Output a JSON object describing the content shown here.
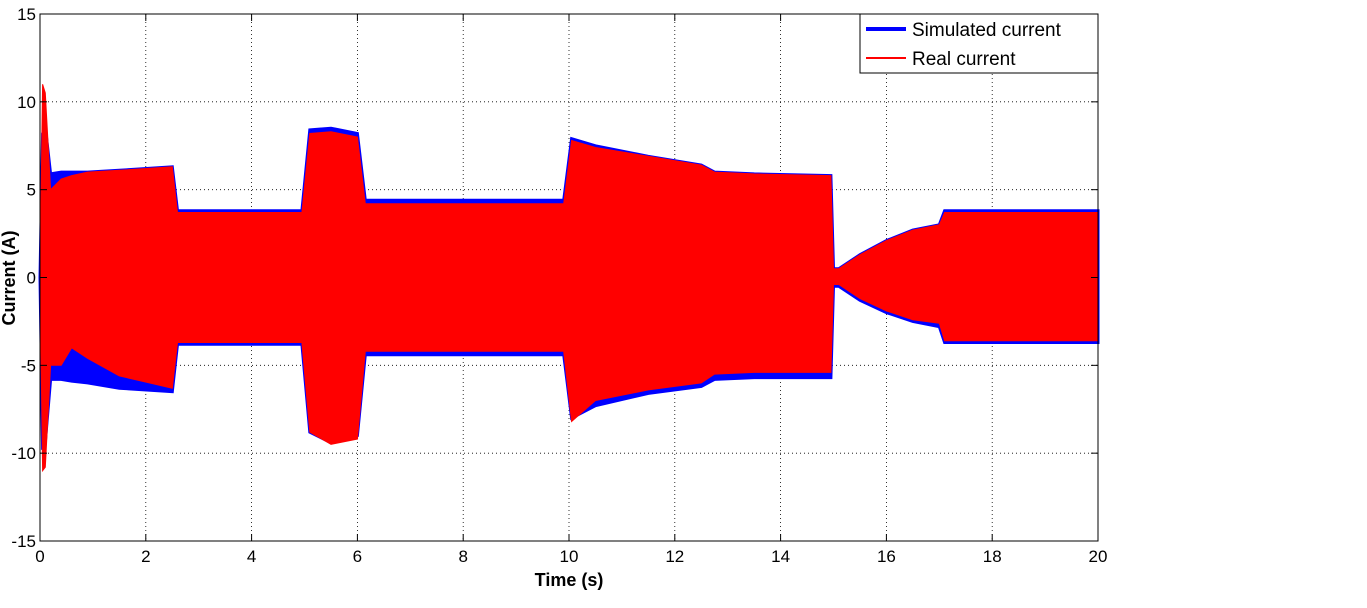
{
  "chart_data": {
    "type": "line",
    "title": "",
    "xlabel": "Time (s)",
    "ylabel": "Current (A)",
    "xlim": [
      0,
      20
    ],
    "ylim": [
      -15,
      15
    ],
    "xticks": [
      0,
      2,
      4,
      6,
      8,
      10,
      12,
      14,
      16,
      18,
      20
    ],
    "yticks": [
      -15,
      -10,
      -5,
      0,
      5,
      10,
      15
    ],
    "grid": true,
    "legend_position": "top-right",
    "colors": {
      "simulated": "#0000ff",
      "real": "#ff0000"
    },
    "series": [
      {
        "name": "Simulated current",
        "kind": "oscillation_envelope",
        "t": [
          0,
          0.05,
          0.1,
          0.2,
          0.4,
          0.6,
          0.9,
          1.5,
          2.5,
          2.6,
          4.95,
          5.1,
          5.5,
          6.0,
          6.15,
          9.9,
          10.05,
          10.5,
          11.5,
          12.5,
          12.75,
          13.5,
          14.95,
          15.0,
          15.1,
          15.5,
          16.0,
          16.5,
          17.0,
          17.1,
          20.0
        ],
        "upper": [
          0,
          8.2,
          8.6,
          5.9,
          6.0,
          6.0,
          6.0,
          6.1,
          6.3,
          3.8,
          3.8,
          8.4,
          8.5,
          8.2,
          4.4,
          4.4,
          7.9,
          7.5,
          6.9,
          6.4,
          6.0,
          5.9,
          5.8,
          0.5,
          0.5,
          1.3,
          2.1,
          2.7,
          3.0,
          3.8,
          3.8
        ],
        "lower": [
          0,
          -9.8,
          -9.4,
          -5.8,
          -5.8,
          -5.9,
          -6.0,
          -6.3,
          -6.5,
          -3.8,
          -3.8,
          -8.8,
          -9.4,
          -9.0,
          -4.4,
          -4.4,
          -8.0,
          -7.3,
          -6.6,
          -6.2,
          -5.8,
          -5.7,
          -5.7,
          -0.5,
          -0.5,
          -1.3,
          -2.0,
          -2.5,
          -2.8,
          -3.7,
          -3.7
        ]
      },
      {
        "name": "Real current",
        "kind": "oscillation_envelope",
        "t": [
          0,
          0.05,
          0.1,
          0.2,
          0.4,
          0.6,
          0.9,
          1.5,
          2.5,
          2.6,
          4.95,
          5.1,
          5.5,
          6.0,
          6.15,
          9.9,
          10.05,
          10.5,
          11.5,
          12.5,
          12.75,
          13.5,
          14.95,
          15.0,
          15.1,
          15.5,
          16.0,
          16.5,
          17.0,
          17.1,
          20.0
        ],
        "upper": [
          0,
          11.0,
          10.5,
          5.0,
          5.6,
          5.8,
          6.0,
          6.1,
          6.3,
          3.7,
          3.7,
          8.2,
          8.3,
          8.0,
          4.2,
          4.2,
          7.8,
          7.4,
          6.9,
          6.4,
          6.0,
          5.9,
          5.8,
          0.5,
          0.5,
          1.3,
          2.1,
          2.7,
          3.0,
          3.7,
          3.7
        ],
        "lower": [
          0,
          -11.0,
          -10.8,
          -5.0,
          -5.0,
          -4.0,
          -4.6,
          -5.6,
          -6.3,
          -3.7,
          -3.7,
          -8.8,
          -9.5,
          -9.2,
          -4.2,
          -4.2,
          -8.2,
          -7.0,
          -6.4,
          -6.0,
          -5.5,
          -5.4,
          -5.4,
          -0.4,
          -0.4,
          -1.2,
          -1.9,
          -2.4,
          -2.6,
          -3.6,
          -3.6
        ]
      }
    ]
  }
}
